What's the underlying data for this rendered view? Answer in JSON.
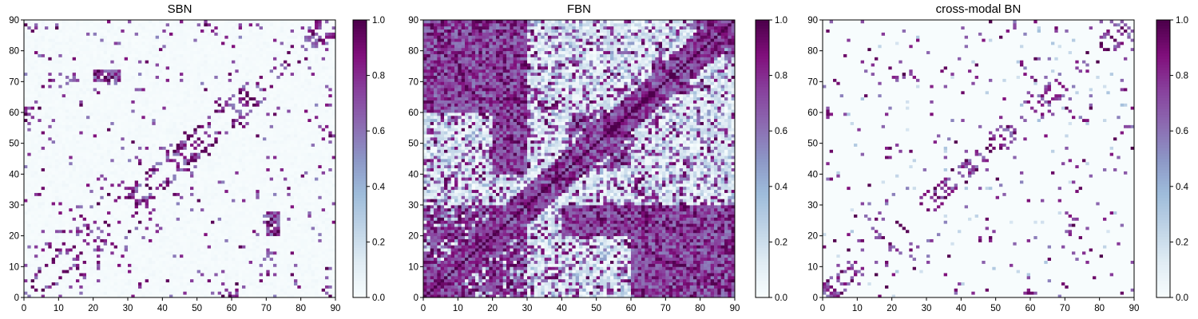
{
  "chart_data": [
    {
      "type": "heatmap",
      "title": "SBN",
      "xlim": [
        0,
        90
      ],
      "ylim": [
        0,
        90
      ],
      "x_ticks": [
        "0",
        "10",
        "20",
        "30",
        "40",
        "50",
        "60",
        "70",
        "80",
        "90"
      ],
      "y_ticks": [
        "0",
        "10",
        "20",
        "30",
        "40",
        "50",
        "60",
        "70",
        "80",
        "90"
      ],
      "colorbar": {
        "range": [
          0.0,
          1.0
        ],
        "ticks": [
          "0.0",
          "0.2",
          "0.4",
          "0.6",
          "0.8",
          "1.0"
        ],
        "colormap": "BuPu"
      },
      "matrix_size": 90,
      "diagonal_band": 5,
      "blocks": [
        [
          10,
          18,
          20,
          30
        ],
        [
          40,
          50,
          36,
          46
        ],
        [
          48,
          56,
          44,
          56
        ],
        [
          20,
          28,
          66,
          74
        ],
        [
          32,
          40,
          22,
          34
        ],
        [
          56,
          68,
          58,
          66
        ]
      ],
      "off_diagonal_clusters": [
        [
          0,
          10,
          0,
          18
        ],
        [
          0,
          4,
          56,
          62
        ],
        [
          10,
          16,
          70,
          74
        ],
        [
          20,
          28,
          70,
          74
        ],
        [
          30,
          36,
          64,
          68
        ],
        [
          84,
          90,
          60,
          66
        ],
        [
          80,
          90,
          80,
          90
        ],
        [
          58,
          64,
          0,
          4
        ],
        [
          70,
          74,
          6,
          30
        ],
        [
          86,
          90,
          0,
          10
        ],
        [
          84,
          90,
          36,
          44
        ],
        [
          86,
          90,
          48,
          56
        ],
        [
          52,
          58,
          84,
          90
        ],
        [
          62,
          70,
          84,
          90
        ]
      ],
      "density": 0.035,
      "background_level": 0.02,
      "seed": 11
    },
    {
      "type": "heatmap",
      "title": "FBN",
      "xlim": [
        0,
        90
      ],
      "ylim": [
        0,
        90
      ],
      "x_ticks": [
        "0",
        "10",
        "20",
        "30",
        "40",
        "50",
        "60",
        "70",
        "80",
        "90"
      ],
      "y_ticks": [
        "0",
        "10",
        "20",
        "30",
        "40",
        "50",
        "60",
        "70",
        "80",
        "90"
      ],
      "colorbar": {
        "range": [
          0.0,
          1.0
        ],
        "ticks": [
          "0.0",
          "0.2",
          "0.4",
          "0.6",
          "0.8",
          "1.0"
        ],
        "colormap": "BuPu"
      },
      "matrix_size": 90,
      "diagonal_band": 6,
      "blocks": [
        [
          0,
          30,
          0,
          30
        ],
        [
          42,
          60,
          42,
          60
        ],
        [
          66,
          78,
          66,
          78
        ],
        [
          0,
          30,
          60,
          90
        ],
        [
          60,
          90,
          0,
          30
        ],
        [
          78,
          90,
          78,
          90
        ]
      ],
      "off_diagonal_clusters": [
        [
          0,
          30,
          80,
          90
        ],
        [
          80,
          90,
          0,
          30
        ],
        [
          20,
          30,
          40,
          60
        ],
        [
          40,
          60,
          20,
          30
        ]
      ],
      "density": 0.28,
      "background_level": 0.25,
      "seed": 23
    },
    {
      "type": "heatmap",
      "title": "cross-modal BN",
      "xlim": [
        0,
        90
      ],
      "ylim": [
        0,
        90
      ],
      "x_ticks": [
        "0",
        "10",
        "20",
        "30",
        "40",
        "50",
        "60",
        "70",
        "80",
        "90"
      ],
      "y_ticks": [
        "0",
        "10",
        "20",
        "30",
        "40",
        "50",
        "60",
        "70",
        "80",
        "90"
      ],
      "colorbar": {
        "range": [
          0.0,
          1.0
        ],
        "ticks": [
          "0.0",
          "0.2",
          "0.4",
          "0.6",
          "0.8",
          "1.0"
        ],
        "colormap": "BuPu"
      },
      "matrix_size": 90,
      "diagonal_band": 4,
      "blocks": [
        [
          10,
          18,
          20,
          30
        ],
        [
          40,
          50,
          40,
          50
        ],
        [
          48,
          56,
          48,
          56
        ],
        [
          20,
          28,
          70,
          74
        ],
        [
          32,
          40,
          28,
          36
        ],
        [
          60,
          70,
          58,
          66
        ]
      ],
      "off_diagonal_clusters": [
        [
          0,
          10,
          0,
          12
        ],
        [
          0,
          4,
          58,
          62
        ],
        [
          10,
          16,
          70,
          74
        ],
        [
          84,
          90,
          60,
          66
        ],
        [
          80,
          90,
          84,
          90
        ],
        [
          58,
          62,
          0,
          4
        ],
        [
          70,
          74,
          16,
          28
        ],
        [
          84,
          90,
          38,
          42
        ],
        [
          86,
          90,
          50,
          56
        ],
        [
          52,
          56,
          86,
          90
        ],
        [
          66,
          70,
          86,
          90
        ]
      ],
      "density": 0.03,
      "background_level": 0.0,
      "seed": 37
    }
  ]
}
